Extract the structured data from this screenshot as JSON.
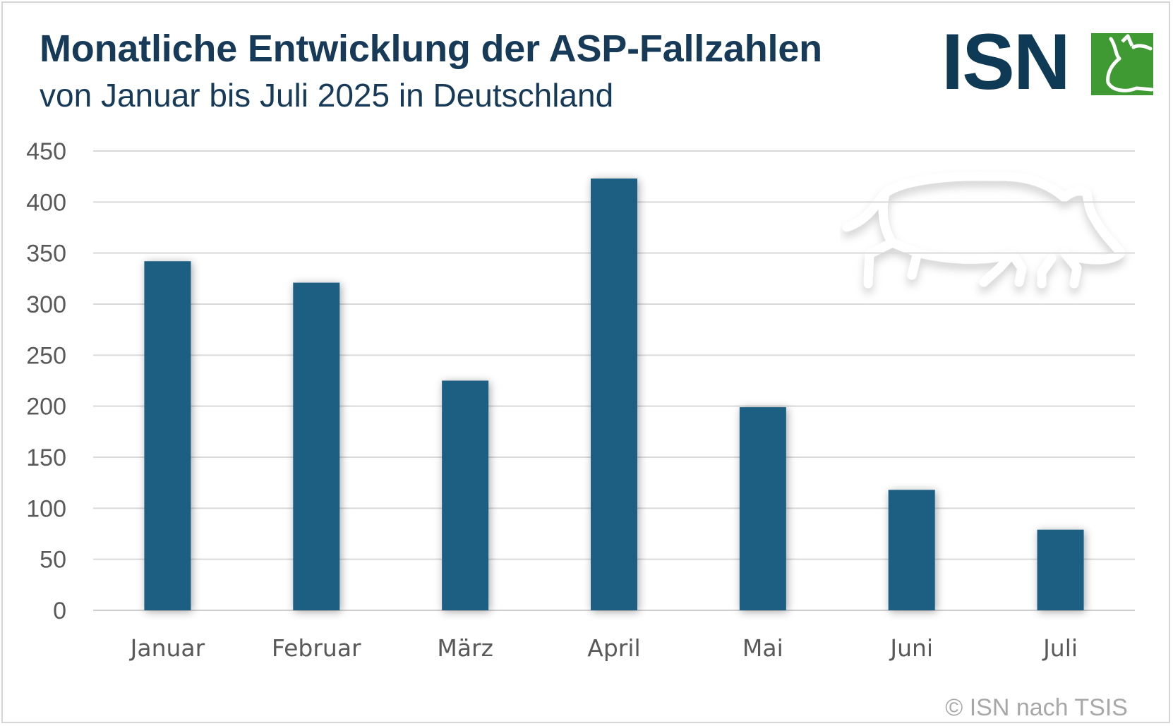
{
  "header": {
    "title": "Monatliche Entwicklung der ASP-Fallzahlen",
    "subtitle": "von Januar bis Juli 2025 in Deutschland"
  },
  "logo": {
    "text": "ISN",
    "icon": "pig-head-icon"
  },
  "decoration": {
    "icon": "boar-silhouette-icon"
  },
  "footer": {
    "copyright": "© ISN nach TSIS"
  },
  "colors": {
    "bar": "#1b5f83",
    "title": "#163a57",
    "logo_text": "#0f3a55",
    "logo_green": "#3f9a34",
    "grid": "#d9d9d9",
    "axis_text": "#595959"
  },
  "chart_data": {
    "type": "bar",
    "categories": [
      "Januar",
      "Februar",
      "März",
      "April",
      "Mai",
      "Juni",
      "Juli"
    ],
    "values": [
      342,
      321,
      225,
      423,
      199,
      118,
      79
    ],
    "ylim": [
      0,
      450
    ],
    "yticks": [
      0,
      50,
      100,
      150,
      200,
      250,
      300,
      350,
      400,
      450
    ],
    "grid": true,
    "legend": "none"
  }
}
